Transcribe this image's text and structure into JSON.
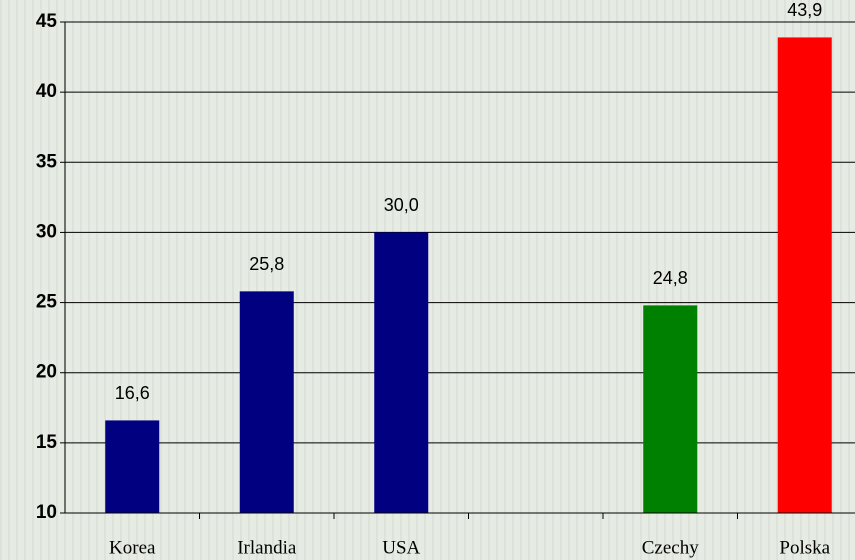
{
  "chart_data": {
    "type": "bar",
    "categories": [
      "Korea",
      "Irlandia",
      "USA",
      null,
      "Czechy",
      "Polska"
    ],
    "values": [
      16.6,
      25.8,
      30.0,
      null,
      24.8,
      43.9
    ],
    "value_labels": [
      "16,6",
      "25,8",
      "30,0",
      null,
      "24,8",
      "43,9"
    ],
    "colors": [
      "#000080",
      "#000080",
      "#000080",
      null,
      "#008000",
      "#ff0000"
    ],
    "ylim": [
      10,
      45
    ],
    "yticks": [
      10,
      15,
      20,
      25,
      30,
      35,
      40,
      45
    ],
    "grid": true
  }
}
